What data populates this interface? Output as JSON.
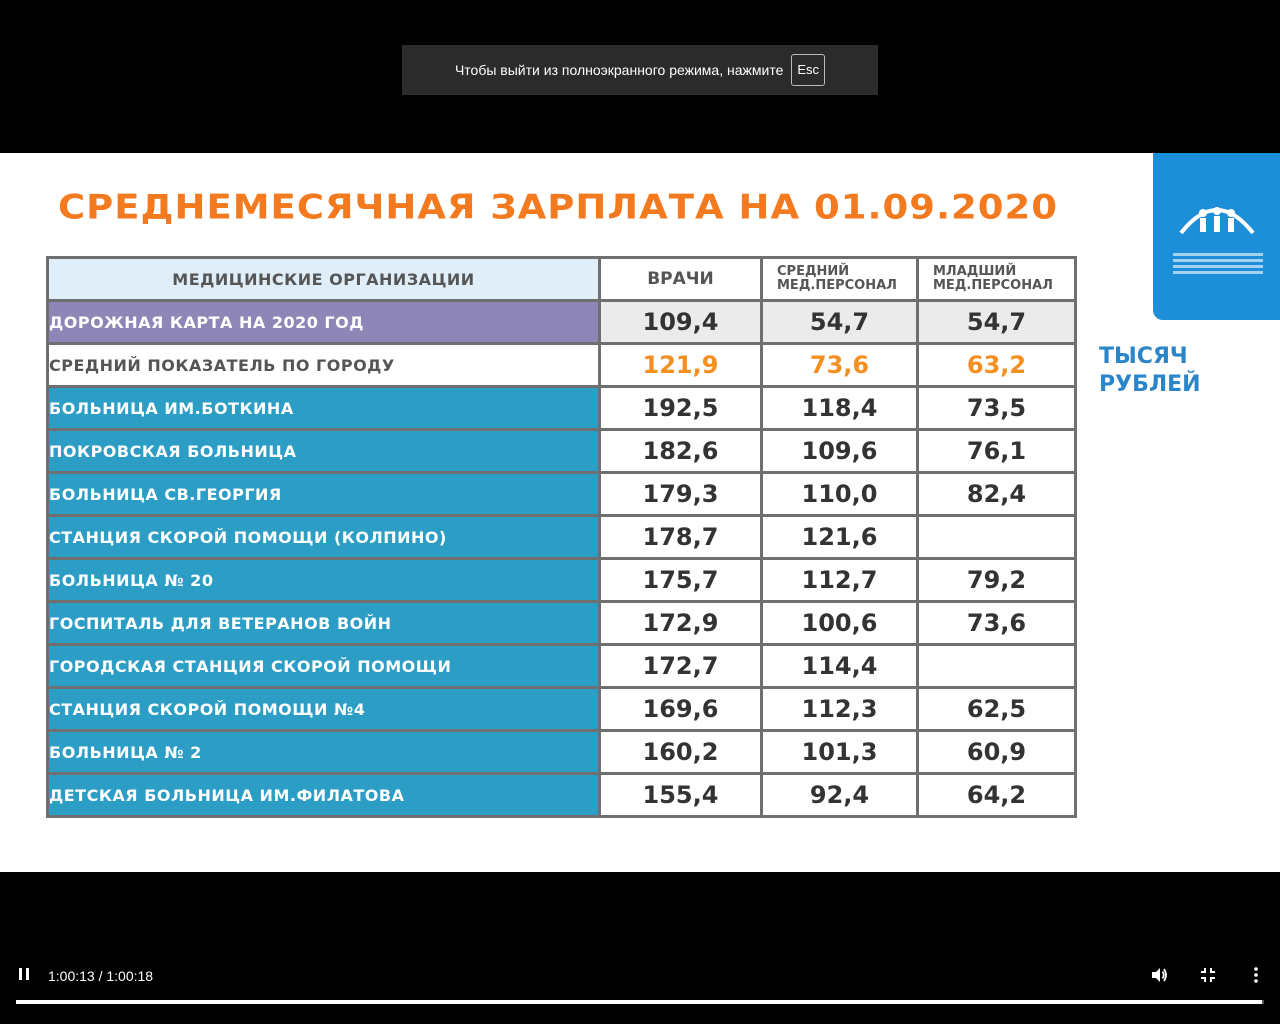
{
  "toast": {
    "text": "Чтобы выйти из полноэкранного режима, нажмите",
    "key": "Esc"
  },
  "slide": {
    "title": "СРЕДНЕМЕСЯЧНАЯ ЗАРПЛАТА НА 01.09.2020",
    "units_line1": "ТЫСЯЧ",
    "units_line2": "РУБЛЕЙ",
    "headers": {
      "org": "МЕДИЦИНСКИЕ ОРГАНИЗАЦИИ",
      "doctors": "ВРАЧИ",
      "middle_1": "СРЕДНИЙ",
      "middle_2": "МЕД.ПЕРСОНАЛ",
      "junior_1": "МЛАДШИЙ",
      "junior_2": "МЕД.ПЕРСОНАЛ"
    },
    "rows": [
      {
        "name": "ДОРОЖНАЯ КАРТА НА 2020 ГОД",
        "doctors": "109,4",
        "middle": "54,7",
        "junior": "54,7"
      },
      {
        "name": "СРЕДНИЙ ПОКАЗАТЕЛЬ ПО ГОРОДУ",
        "doctors": "121,9",
        "middle": "73,6",
        "junior": "63,2"
      },
      {
        "name": "БОЛЬНИЦА ИМ.БОТКИНА",
        "doctors": "192,5",
        "middle": "118,4",
        "junior": "73,5"
      },
      {
        "name": "ПОКРОВСКАЯ БОЛЬНИЦА",
        "doctors": "182,6",
        "middle": "109,6",
        "junior": "76,1"
      },
      {
        "name": "БОЛЬНИЦА СВ.ГЕОРГИЯ",
        "doctors": "179,3",
        "middle": "110,0",
        "junior": "82,4"
      },
      {
        "name": "СТАНЦИЯ СКОРОЙ ПОМОЩИ (КОЛПИНО)",
        "doctors": "178,7",
        "middle": "121,6",
        "junior": ""
      },
      {
        "name": "БОЛЬНИЦА № 20",
        "doctors": "175,7",
        "middle": "112,7",
        "junior": "79,2"
      },
      {
        "name": "ГОСПИТАЛЬ ДЛЯ ВЕТЕРАНОВ ВОЙН",
        "doctors": "172,9",
        "middle": "100,6",
        "junior": "73,6"
      },
      {
        "name": "ГОРОДСКАЯ СТАНЦИЯ СКОРОЙ ПОМОЩИ",
        "doctors": "172,7",
        "middle": "114,4",
        "junior": ""
      },
      {
        "name": "СТАНЦИЯ СКОРОЙ ПОМОЩИ №4",
        "doctors": "169,6",
        "middle": "112,3",
        "junior": "62,5"
      },
      {
        "name": "БОЛЬНИЦА № 2",
        "doctors": "160,2",
        "middle": "101,3",
        "junior": "60,9"
      },
      {
        "name": "ДЕТСКАЯ БОЛЬНИЦА ИМ.ФИЛАТОВА",
        "doctors": "155,4",
        "middle": "92,4",
        "junior": "64,2"
      }
    ]
  },
  "player": {
    "time": "1:00:13 / 1:00:18",
    "progress": 0.9986,
    "icons": {
      "play_pause": "pause-icon",
      "volume": "volume-icon",
      "fullscreen": "exit-fullscreen-icon",
      "more": "more-vert-icon"
    }
  },
  "colors": {
    "title": "#f47a20",
    "row_blue": "#2c9dc5",
    "row_purple": "#8f86b8",
    "city_values": "#f39021",
    "logo": "#1d8fd8"
  }
}
